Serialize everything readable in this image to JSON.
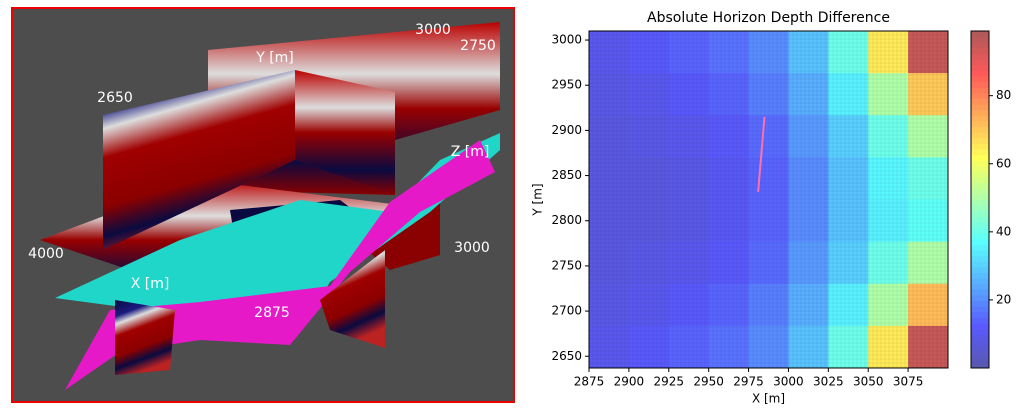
{
  "scene": {
    "labels": [
      "Y [m]",
      "3000",
      "2750",
      "2650",
      "Z [m]",
      "4000",
      "X [m]",
      "3000",
      "2875"
    ]
  },
  "chart_data": {
    "type": "heatmap",
    "title": "Absolute Horizon Depth Difference",
    "x_label": "X [m]",
    "y_label": "Y [m]",
    "xlim": [
      2875,
      3100
    ],
    "ylim": [
      2637,
      3010
    ],
    "xticks": [
      2875,
      2900,
      2925,
      2950,
      2975,
      3000,
      3025,
      3050,
      3075
    ],
    "yticks": [
      2650,
      2700,
      2750,
      2800,
      2850,
      2900,
      2950,
      3000
    ],
    "clim": [
      0,
      99
    ],
    "cticks": [
      20,
      40,
      60,
      80
    ],
    "colormap": "jet",
    "values": [
      [
        10,
        12,
        14,
        16,
        20,
        28,
        40,
        65,
        95
      ],
      [
        9,
        10,
        12,
        14,
        18,
        25,
        35,
        50,
        70
      ],
      [
        8,
        9,
        10,
        12,
        15,
        22,
        30,
        40,
        50
      ],
      [
        8,
        8,
        9,
        11,
        14,
        20,
        28,
        36,
        40
      ],
      [
        8,
        8,
        9,
        11,
        14,
        20,
        28,
        35,
        38
      ],
      [
        8,
        9,
        10,
        12,
        15,
        22,
        30,
        40,
        50
      ],
      [
        9,
        10,
        12,
        14,
        18,
        25,
        35,
        50,
        72
      ],
      [
        10,
        12,
        14,
        16,
        20,
        28,
        40,
        65,
        95
      ]
    ],
    "series": [
      {
        "color": "#ff6fb0",
        "x": [
          2981,
          2985
        ],
        "y": [
          2832,
          2915
        ]
      }
    ]
  }
}
